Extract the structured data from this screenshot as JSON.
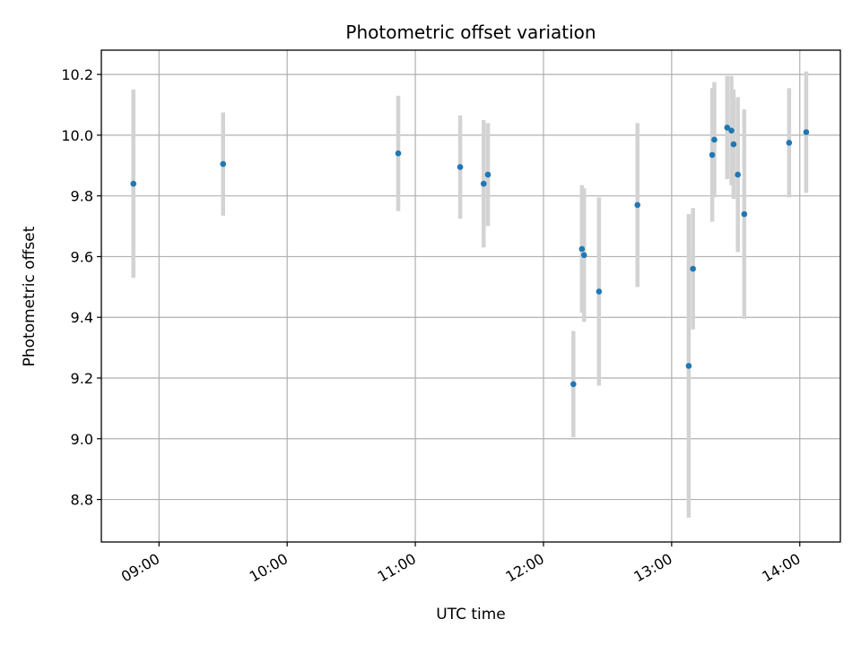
{
  "chart_data": {
    "type": "scatter",
    "title": "Photometric offset variation",
    "xlabel": "UTC time",
    "ylabel": "Photometric offset",
    "x_tick_labels": [
      "09:00",
      "10:00",
      "11:00",
      "12:00",
      "13:00",
      "14:00"
    ],
    "x_ticks": [
      "09:00",
      "10:00",
      "11:00",
      "12:00",
      "13:00",
      "14:00"
    ],
    "y_ticks": [
      8.8,
      9.0,
      9.2,
      9.4,
      9.6,
      9.8,
      10.0,
      10.2
    ],
    "y_tick_labels": [
      "8.8",
      "9.0",
      "9.2",
      "9.4",
      "9.6",
      "9.8",
      "10.0",
      "10.2"
    ],
    "xlim": [
      "08:33",
      "14:19"
    ],
    "ylim": [
      8.66,
      10.28
    ],
    "grid": true,
    "marker_color": "#1f77b4",
    "errorbar_color": "#d3d3d3",
    "points": [
      {
        "t": "08:48",
        "y": 9.84,
        "err": 0.31
      },
      {
        "t": "09:30",
        "y": 9.905,
        "err": 0.17
      },
      {
        "t": "10:52",
        "y": 9.94,
        "err": 0.19
      },
      {
        "t": "11:21",
        "y": 9.895,
        "err": 0.17
      },
      {
        "t": "11:32",
        "y": 9.84,
        "err": 0.21
      },
      {
        "t": "11:34",
        "y": 9.87,
        "err": 0.17
      },
      {
        "t": "12:14",
        "y": 9.18,
        "err": 0.175
      },
      {
        "t": "12:18",
        "y": 9.625,
        "err": 0.21
      },
      {
        "t": "12:19",
        "y": 9.605,
        "err": 0.22
      },
      {
        "t": "12:26",
        "y": 9.485,
        "err": 0.31
      },
      {
        "t": "12:44",
        "y": 9.77,
        "err": 0.27
      },
      {
        "t": "13:08",
        "y": 9.24,
        "err": 0.5
      },
      {
        "t": "13:10",
        "y": 9.56,
        "err": 0.2
      },
      {
        "t": "13:19",
        "y": 9.935,
        "err": 0.22
      },
      {
        "t": "13:20",
        "y": 9.985,
        "err": 0.19
      },
      {
        "t": "13:26",
        "y": 10.025,
        "err": 0.17
      },
      {
        "t": "13:28",
        "y": 10.015,
        "err": 0.18
      },
      {
        "t": "13:29",
        "y": 9.97,
        "err": 0.18
      },
      {
        "t": "13:31",
        "y": 9.87,
        "err": 0.255
      },
      {
        "t": "13:34",
        "y": 9.74,
        "err": 0.345
      },
      {
        "t": "13:55",
        "y": 9.975,
        "err": 0.18
      },
      {
        "t": "14:03",
        "y": 10.01,
        "err": 0.2
      }
    ]
  }
}
